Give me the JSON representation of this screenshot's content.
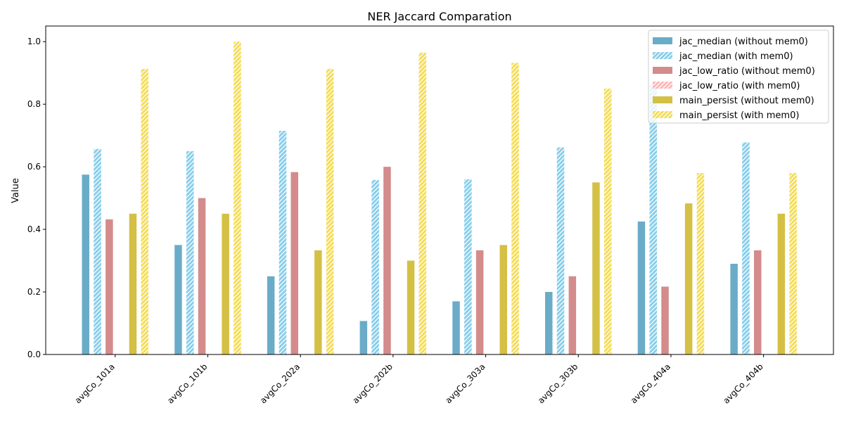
{
  "chart_data": {
    "type": "bar",
    "title": "NER Jaccard Comparation",
    "xlabel": "",
    "ylabel": "Value",
    "ylim": [
      0,
      1.05
    ],
    "yticks": [
      0.0,
      0.2,
      0.4,
      0.6,
      0.8,
      1.0
    ],
    "ytick_labels": [
      "0.0",
      "0.2",
      "0.4",
      "0.6",
      "0.8",
      "1.0"
    ],
    "grid": false,
    "legend_position": "top-right",
    "categories": [
      "avgCo_101a",
      "avgCo_101b",
      "avgCo_202a",
      "avgCo_202b",
      "avgCo_303a",
      "avgCo_303b",
      "avgCo_404a",
      "avgCo_404b"
    ],
    "series": [
      {
        "name": "jac_median (without mem0)",
        "color": "#6aacc8",
        "hatch": false,
        "values": [
          0.575,
          0.35,
          0.25,
          0.107,
          0.17,
          0.2,
          0.425,
          0.29
        ]
      },
      {
        "name": "jac_median (with mem0)",
        "color": "#87ceeb",
        "hatch": true,
        "values": [
          0.657,
          0.65,
          0.715,
          0.558,
          0.56,
          0.662,
          0.86,
          0.678
        ]
      },
      {
        "name": "jac_low_ratio (without mem0)",
        "color": "#d48b8b",
        "hatch": false,
        "values": [
          0.432,
          0.5,
          0.583,
          0.6,
          0.333,
          0.25,
          0.217,
          0.333
        ]
      },
      {
        "name": "jac_low_ratio (with mem0)",
        "color": "#ffb6b6",
        "hatch": true,
        "values": [
          0,
          0,
          0,
          0,
          0,
          0,
          0,
          0
        ]
      },
      {
        "name": "main_persist (without mem0)",
        "color": "#d4c044",
        "hatch": false,
        "values": [
          0.45,
          0.45,
          0.333,
          0.3,
          0.35,
          0.55,
          0.483,
          0.45
        ]
      },
      {
        "name": "main_persist (with mem0)",
        "color": "#f5dd55",
        "hatch": true,
        "values": [
          0.913,
          1.0,
          0.913,
          0.965,
          0.932,
          0.85,
          0.58,
          0.58
        ]
      }
    ]
  }
}
